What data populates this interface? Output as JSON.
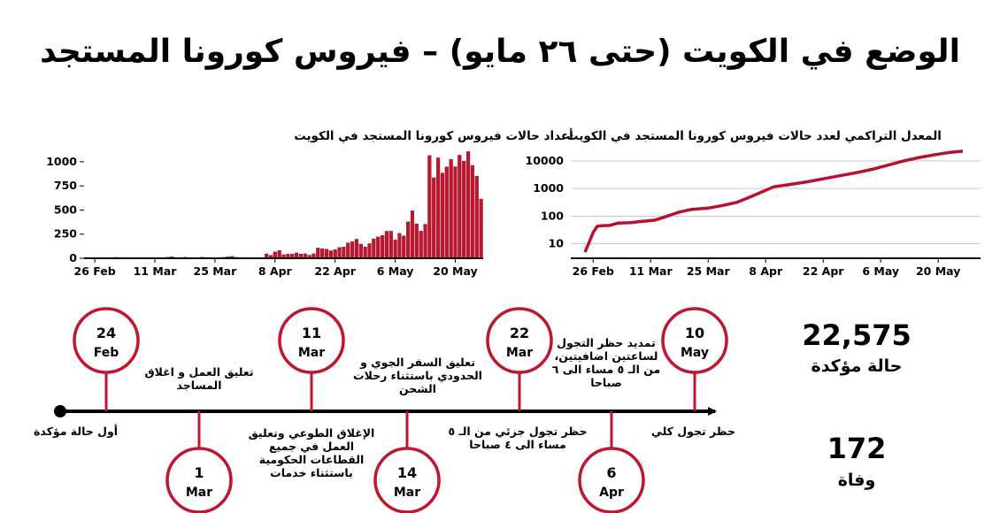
{
  "title": "الوضع في الكويت (حتى ٢٦ مايو) – فيروس كورونا المستجد",
  "colors": {
    "accent": "#c0152f",
    "line": "#b5122b",
    "axis": "#000000",
    "grid": "#cccccc"
  },
  "chart_data": [
    {
      "type": "bar",
      "title": "أعداد حالات فيروس كورونا المستجد في الكويت",
      "xlabel": "",
      "ylabel": "",
      "ylim": [
        0,
        1100
      ],
      "yticks": [
        0,
        250,
        500,
        750,
        1000
      ],
      "xticks": [
        "26 Feb",
        "11 Mar",
        "25 Mar",
        "8 Apr",
        "22 Apr",
        "6 May",
        "20 May"
      ],
      "x_start": "24 Feb",
      "categories": [
        "24 Feb",
        "25 Feb",
        "26 Feb",
        "27 Feb",
        "28 Feb",
        "29 Feb",
        "1 Mar",
        "2 Mar",
        "3 Mar",
        "4 Mar",
        "5 Mar",
        "6 Mar",
        "7 Mar",
        "8 Mar",
        "9 Mar",
        "10 Mar",
        "11 Mar",
        "12 Mar",
        "13 Mar",
        "14 Mar",
        "15 Mar",
        "16 Mar",
        "17 Mar",
        "18 Mar",
        "19 Mar",
        "20 Mar",
        "21 Mar",
        "22 Mar",
        "23 Mar",
        "24 Mar",
        "25 Mar",
        "26 Mar",
        "27 Mar",
        "28 Mar",
        "29 Mar",
        "30 Mar",
        "31 Mar",
        "1 Apr",
        "2 Apr",
        "3 Apr",
        "4 Apr",
        "5 Apr",
        "6 Apr",
        "7 Apr",
        "8 Apr",
        "9 Apr",
        "10 Apr",
        "11 Apr",
        "12 Apr",
        "13 Apr",
        "14 Apr",
        "15 Apr",
        "16 Apr",
        "17 Apr",
        "18 Apr",
        "19 Apr",
        "20 Apr",
        "21 Apr",
        "22 Apr",
        "23 Apr",
        "24 Apr",
        "25 Apr",
        "26 Apr",
        "27 Apr",
        "28 Apr",
        "29 Apr",
        "30 Apr",
        "1 May",
        "2 May",
        "3 May",
        "4 May",
        "5 May",
        "6 May",
        "7 May",
        "8 May",
        "9 May",
        "10 May",
        "11 May",
        "12 May",
        "13 May",
        "14 May",
        "15 May",
        "16 May",
        "17 May",
        "18 May",
        "19 May",
        "20 May",
        "21 May",
        "22 May",
        "23 May",
        "24 May",
        "25 May",
        "26 May"
      ],
      "values": [
        3,
        2,
        6,
        4,
        5,
        0,
        1,
        10,
        0,
        0,
        2,
        1,
        2,
        2,
        5,
        0,
        4,
        4,
        6,
        11,
        16,
        3,
        7,
        12,
        6,
        6,
        0,
        12,
        9,
        0,
        0,
        0,
        10,
        17,
        20,
        10,
        8,
        0,
        1,
        0,
        0,
        0,
        46,
        31,
        67,
        82,
        37,
        44,
        43,
        56,
        45,
        47,
        32,
        47,
        107,
        99,
        95,
        78,
        90,
        112,
        118,
        160,
        172,
        198,
        147,
        117,
        152,
        202,
        222,
        238,
        280,
        281,
        192,
        259,
        233,
        379,
        492,
        357,
        282,
        353,
        1065,
        835,
        1041,
        884,
        948,
        1024,
        949,
        1069,
        1008,
        1106,
        963,
        851,
        614
      ]
    },
    {
      "type": "line",
      "title": "المعدل التراكمي لعدد حالات فيروس كورونا المستجد في الكويت",
      "xlabel": "",
      "ylabel": "",
      "yscale": "log",
      "ylim": [
        3,
        30000
      ],
      "yticks": [
        10,
        100,
        1000,
        10000
      ],
      "xticks": [
        "26 Feb",
        "11 Mar",
        "25 Mar",
        "8 Apr",
        "22 Apr",
        "6 May",
        "20 May"
      ],
      "x_start": "24 Feb",
      "x_end": "26 May",
      "series": [
        {
          "x": [
            "24 Feb",
            "25 Feb",
            "26 Feb",
            "27 Feb",
            "28 Feb",
            "1 Mar",
            "3 Mar",
            "6 Mar",
            "9 Mar",
            "12 Mar",
            "15 Mar",
            "18 Mar",
            "21 Mar",
            "25 Mar",
            "28 Mar",
            "1 Apr",
            "4 Apr",
            "7 Apr",
            "10 Apr",
            "14 Apr",
            "18 Apr",
            "22 Apr",
            "26 Apr",
            "30 Apr",
            "4 May",
            "8 May",
            "12 May",
            "16 May",
            "20 May",
            "23 May",
            "26 May"
          ],
          "values": [
            5,
            11,
            26,
            43,
            45,
            46,
            56,
            58,
            65,
            72,
            100,
            142,
            176,
            195,
            235,
            317,
            479,
            743,
            1154,
            1405,
            1751,
            2248,
            2892,
            3740,
            4983,
            7208,
            10277,
            13802,
            17568,
            20464,
            22575
          ]
        }
      ]
    }
  ],
  "timeline": {
    "events": [
      {
        "day": "24",
        "month": "Feb",
        "text": "أول حالة مؤكدة"
      },
      {
        "day": "1",
        "month": "Mar",
        "text": "تعليق العمل و اغلاق المساجد"
      },
      {
        "day": "11",
        "month": "Mar",
        "text": "الإغلاق الطوعي وتعليق العمل في جميع القطاعات الحكومية باستثناء خدمات"
      },
      {
        "day": "14",
        "month": "Mar",
        "text": "تعليق السفر الجوي و الحدودي باستثناء رحلات الشحن"
      },
      {
        "day": "22",
        "month": "Mar",
        "text": "حظر تجول جزئي من الـ ٥ مساء الى ٤ صباحا"
      },
      {
        "day": "6",
        "month": "Apr",
        "text": "تمديد حظر التجول لساعتين اضافيتين، من الـ ٥ مساء الى ٦ صباحا"
      },
      {
        "day": "10",
        "month": "May",
        "text": "حظر تجول كلي"
      }
    ]
  },
  "stats": {
    "confirmed": {
      "value": "22,575",
      "label": "حالة مؤكدة"
    },
    "deaths": {
      "value": "172",
      "label": "وفاة"
    }
  }
}
